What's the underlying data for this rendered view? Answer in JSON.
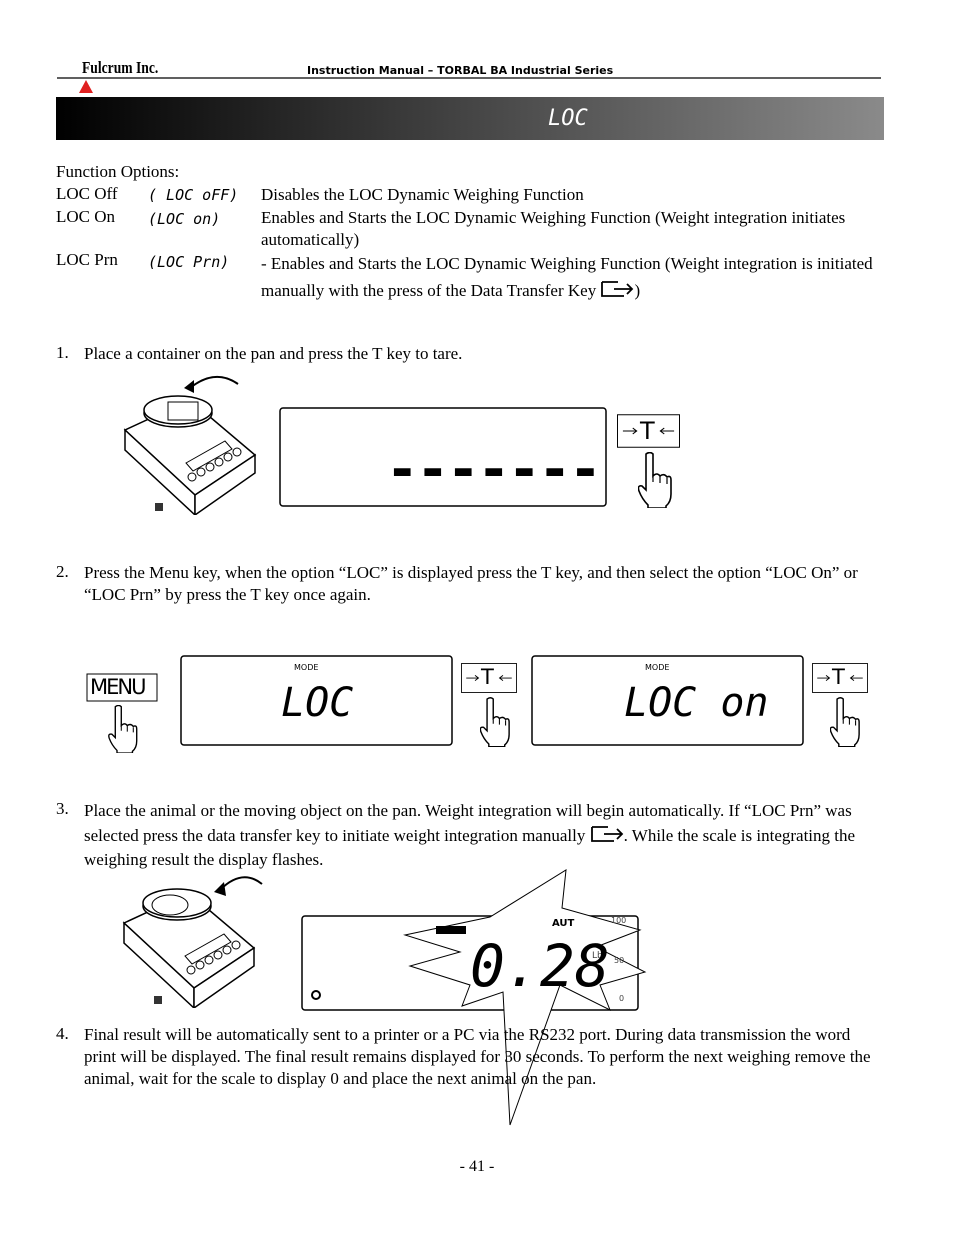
{
  "header": {
    "logo": "Fulcrum Inc.",
    "title": "Instruction Manual – TORBAL BA Industrial Series"
  },
  "banner": {
    "title": "LOC"
  },
  "options": {
    "label": "Function Options:",
    "rows": [
      {
        "name": "LOC Off",
        "code": "( LOC oFF)",
        "description": "Disables the LOC Dynamic Weighing Function"
      },
      {
        "name": "LOC On",
        "code": "(LOC on)",
        "description": "Enables and Starts the LOC Dynamic Weighing Function (Weight integration initiates automatically)"
      },
      {
        "name": "LOC Prn",
        "code": "(LOC Prn)",
        "description": "- Enables and Starts the LOC Dynamic Weighing Function (Weight integration is initiated manually with the press of the Data Transfer Key",
        "description_end": ")"
      }
    ]
  },
  "steps": [
    {
      "number": "1.",
      "text": "Place a container on the pan and press the T key to tare."
    },
    {
      "number": "2.",
      "text": "Press the Menu key, when the option “LOC” is displayed press the T key, and then select the option “LOC On” or “LOC Prn” by press the T key once again."
    },
    {
      "number": "3.",
      "text": "Place the animal or the moving object on the pan. Weight integration will begin automatically. If “LOC Prn” was selected press the data transfer key to initiate weight integration manually",
      "text_end": ". While the scale is integrating the weighing result the display flashes."
    },
    {
      "number": "4.",
      "text": "Final result will be automatically sent to a printer or a PC via the RS232 port. During data transmission the word print will be displayed. The final result remains displayed for 30 seconds. To perform the next weighing remove the animal, wait for the scale to display 0 and place the next animal on the pan."
    }
  ],
  "figures": {
    "step1": {
      "display": "-------",
      "key": "T"
    },
    "step2": {
      "menu_key": "MENU",
      "display1": {
        "mode": "MODE",
        "text": "LOC"
      },
      "key1": "T",
      "display2": {
        "mode": "MODE",
        "text": "LOC on"
      },
      "key2": "T"
    },
    "step3": {
      "indicator": "AUT",
      "scale_top": "100",
      "unit": "Lb",
      "scale_mid": "50",
      "scale_bottom": "0",
      "reading": "0.28"
    }
  },
  "footer": {
    "page_number": "- 41 -"
  }
}
